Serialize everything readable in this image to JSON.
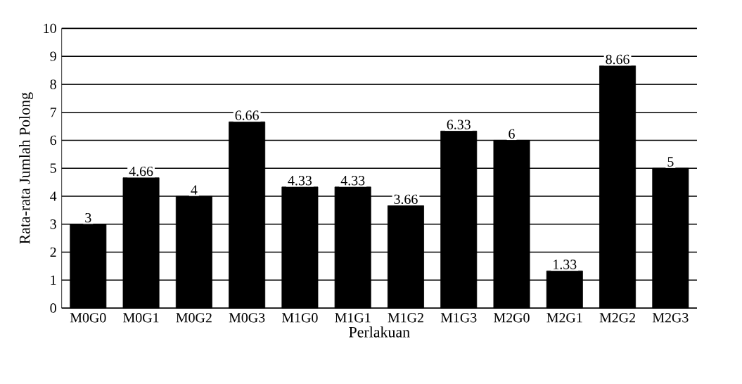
{
  "chart_data": {
    "type": "bar",
    "xlabel": "Perlakuan",
    "ylabel": "Rata-rata Jumlah Polong",
    "categories": [
      "M0G0",
      "M0G1",
      "M0G2",
      "M0G3",
      "M1G0",
      "M1G1",
      "M1G2",
      "M1G3",
      "M2G0",
      "M2G1",
      "M2G2",
      "M2G3"
    ],
    "values": [
      3,
      4.66,
      4,
      6.66,
      4.33,
      4.33,
      3.66,
      6.33,
      6,
      1.33,
      8.66,
      5
    ],
    "color": "#000000",
    "ylim": [
      0,
      10
    ],
    "yticks": [
      0,
      1,
      2,
      3,
      4,
      5,
      6,
      7,
      8,
      9,
      10
    ],
    "grid": "y",
    "data_labels": true
  }
}
